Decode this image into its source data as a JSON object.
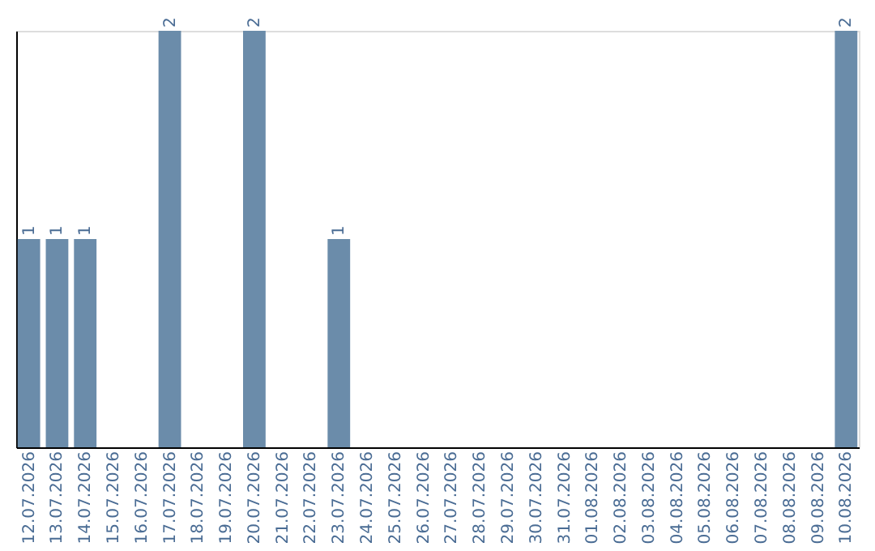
{
  "chart_data": {
    "type": "bar",
    "categories": [
      "12.07.2026",
      "13.07.2026",
      "14.07.2026",
      "15.07.2026",
      "16.07.2026",
      "17.07.2026",
      "18.07.2026",
      "19.07.2026",
      "20.07.2026",
      "21.07.2026",
      "22.07.2026",
      "23.07.2026",
      "24.07.2026",
      "25.07.2026",
      "26.07.2026",
      "27.07.2026",
      "28.07.2026",
      "29.07.2026",
      "30.07.2026",
      "31.07.2026",
      "01.08.2026",
      "02.08.2026",
      "03.08.2026",
      "04.08.2026",
      "05.08.2026",
      "06.08.2026",
      "07.08.2026",
      "08.08.2026",
      "09.08.2026",
      "10.08.2026"
    ],
    "values": [
      1,
      1,
      1,
      0,
      0,
      2,
      0,
      0,
      2,
      0,
      0,
      1,
      0,
      0,
      0,
      0,
      0,
      0,
      0,
      0,
      0,
      0,
      0,
      0,
      0,
      0,
      0,
      0,
      0,
      2
    ],
    "value_labels": [
      "1",
      "1",
      "1",
      null,
      null,
      "2",
      null,
      null,
      "2",
      null,
      null,
      "1",
      null,
      null,
      null,
      null,
      null,
      null,
      null,
      null,
      null,
      null,
      null,
      null,
      null,
      null,
      null,
      null,
      null,
      "2"
    ],
    "color": "#6b8caa",
    "tick_labels": "x"
  }
}
